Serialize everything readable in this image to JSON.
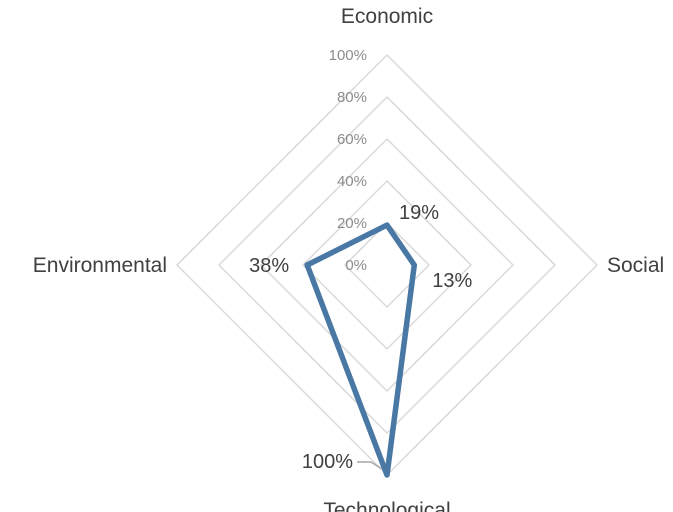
{
  "chart_data": {
    "type": "radar",
    "categories": [
      "Economic",
      "Social",
      "Technological",
      "Environmental"
    ],
    "series": [
      {
        "values": [
          19,
          13,
          100,
          38
        ],
        "color": "#4a78a4"
      }
    ],
    "data_labels": [
      "19%",
      "13%",
      "100%",
      "38%"
    ],
    "axis": {
      "min": 0,
      "max": 100,
      "ticks": [
        "0%",
        "20%",
        "40%",
        "60%",
        "80%",
        "100%"
      ]
    },
    "grid": true,
    "legend": "none"
  }
}
